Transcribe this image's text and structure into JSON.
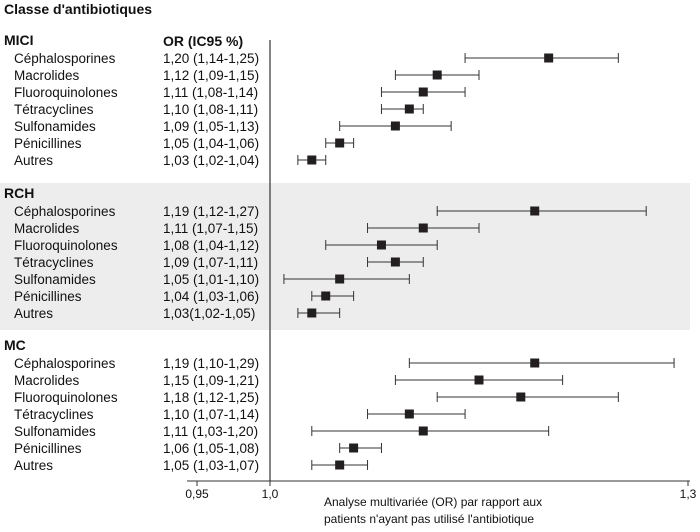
{
  "chart_data": {
    "type": "forest",
    "title": "Classe d'antibiotiques",
    "column_header": "OR (IC95 %)",
    "xlabel_lines": [
      "Analyse multivariée (OR) par rapport aux",
      "patients n'ayant pas utilisé l'antibiotique"
    ],
    "x_ticks": [
      {
        "value": 0.95,
        "label": "0,95"
      },
      {
        "value": 1.0,
        "label": "1,0"
      },
      {
        "value": 1.3,
        "label": "1,3"
      }
    ],
    "xlim": [
      0.95,
      1.3
    ],
    "reference_line": 1.0,
    "colors": {
      "shaded_band": "#ededed",
      "marker": "#231f20",
      "line": "#333333"
    },
    "groups": [
      {
        "name": "MICI",
        "shaded": false,
        "rows": [
          {
            "label": "Céphalosporines",
            "text": "1,20 (1,14-1,25)",
            "or": 1.2,
            "lo": 1.14,
            "hi": 1.25
          },
          {
            "label": "Macrolides",
            "text": "1,12 (1,09-1,15)",
            "or": 1.12,
            "lo": 1.09,
            "hi": 1.15
          },
          {
            "label": "Fluoroquinolones",
            "text": "1,11 (1,08-1,14)",
            "or": 1.11,
            "lo": 1.08,
            "hi": 1.14
          },
          {
            "label": "Tétracyclines",
            "text": "1,10 (1,08-1,11)",
            "or": 1.1,
            "lo": 1.08,
            "hi": 1.11
          },
          {
            "label": "Sulfonamides",
            "text": "1,09 (1,05-1,13)",
            "or": 1.09,
            "lo": 1.05,
            "hi": 1.13
          },
          {
            "label": "Pénicillines",
            "text": "1,05 (1,04-1,06)",
            "or": 1.05,
            "lo": 1.04,
            "hi": 1.06
          },
          {
            "label": "Autres",
            "text": "1,03 (1,02-1,04)",
            "or": 1.03,
            "lo": 1.02,
            "hi": 1.04
          }
        ]
      },
      {
        "name": "RCH",
        "shaded": true,
        "rows": [
          {
            "label": "Céphalosporines",
            "text": "1,19 (1,12-1,27)",
            "or": 1.19,
            "lo": 1.12,
            "hi": 1.27
          },
          {
            "label": "Macrolides",
            "text": "1,11 (1,07-1,15)",
            "or": 1.11,
            "lo": 1.07,
            "hi": 1.15
          },
          {
            "label": "Fluoroquinolones",
            "text": "1,08 (1,04-1,12)",
            "or": 1.08,
            "lo": 1.04,
            "hi": 1.12
          },
          {
            "label": "Tétracyclines",
            "text": "1,09 (1,07-1,11)",
            "or": 1.09,
            "lo": 1.07,
            "hi": 1.11
          },
          {
            "label": "Sulfonamides",
            "text": "1,05 (1,01-1,10)",
            "or": 1.05,
            "lo": 1.01,
            "hi": 1.1
          },
          {
            "label": "Pénicillines",
            "text": "1,04 (1,03-1,06)",
            "or": 1.04,
            "lo": 1.03,
            "hi": 1.06
          },
          {
            "label": "Autres",
            "text": "1,03(1,02-1,05)",
            "or": 1.03,
            "lo": 1.02,
            "hi": 1.05
          }
        ]
      },
      {
        "name": "MC",
        "shaded": false,
        "rows": [
          {
            "label": "Céphalosporines",
            "text": "1,19 (1,10-1,29)",
            "or": 1.19,
            "lo": 1.1,
            "hi": 1.29
          },
          {
            "label": "Macrolides",
            "text": "1,15 (1,09-1,21)",
            "or": 1.15,
            "lo": 1.09,
            "hi": 1.21
          },
          {
            "label": "Fluoroquinolones",
            "text": "1,18 (1,12-1,25)",
            "or": 1.18,
            "lo": 1.12,
            "hi": 1.25
          },
          {
            "label": "Tétracyclines",
            "text": "1,10 (1,07-1,14)",
            "or": 1.1,
            "lo": 1.07,
            "hi": 1.14
          },
          {
            "label": "Sulfonamides",
            "text": "1,11 (1,03-1,20)",
            "or": 1.11,
            "lo": 1.03,
            "hi": 1.2
          },
          {
            "label": "Pénicillines",
            "text": "1,06 (1,05-1,08)",
            "or": 1.06,
            "lo": 1.05,
            "hi": 1.08
          },
          {
            "label": "Autres",
            "text": "1,05 (1,03-1,07)",
            "or": 1.05,
            "lo": 1.03,
            "hi": 1.07
          }
        ]
      }
    ]
  }
}
